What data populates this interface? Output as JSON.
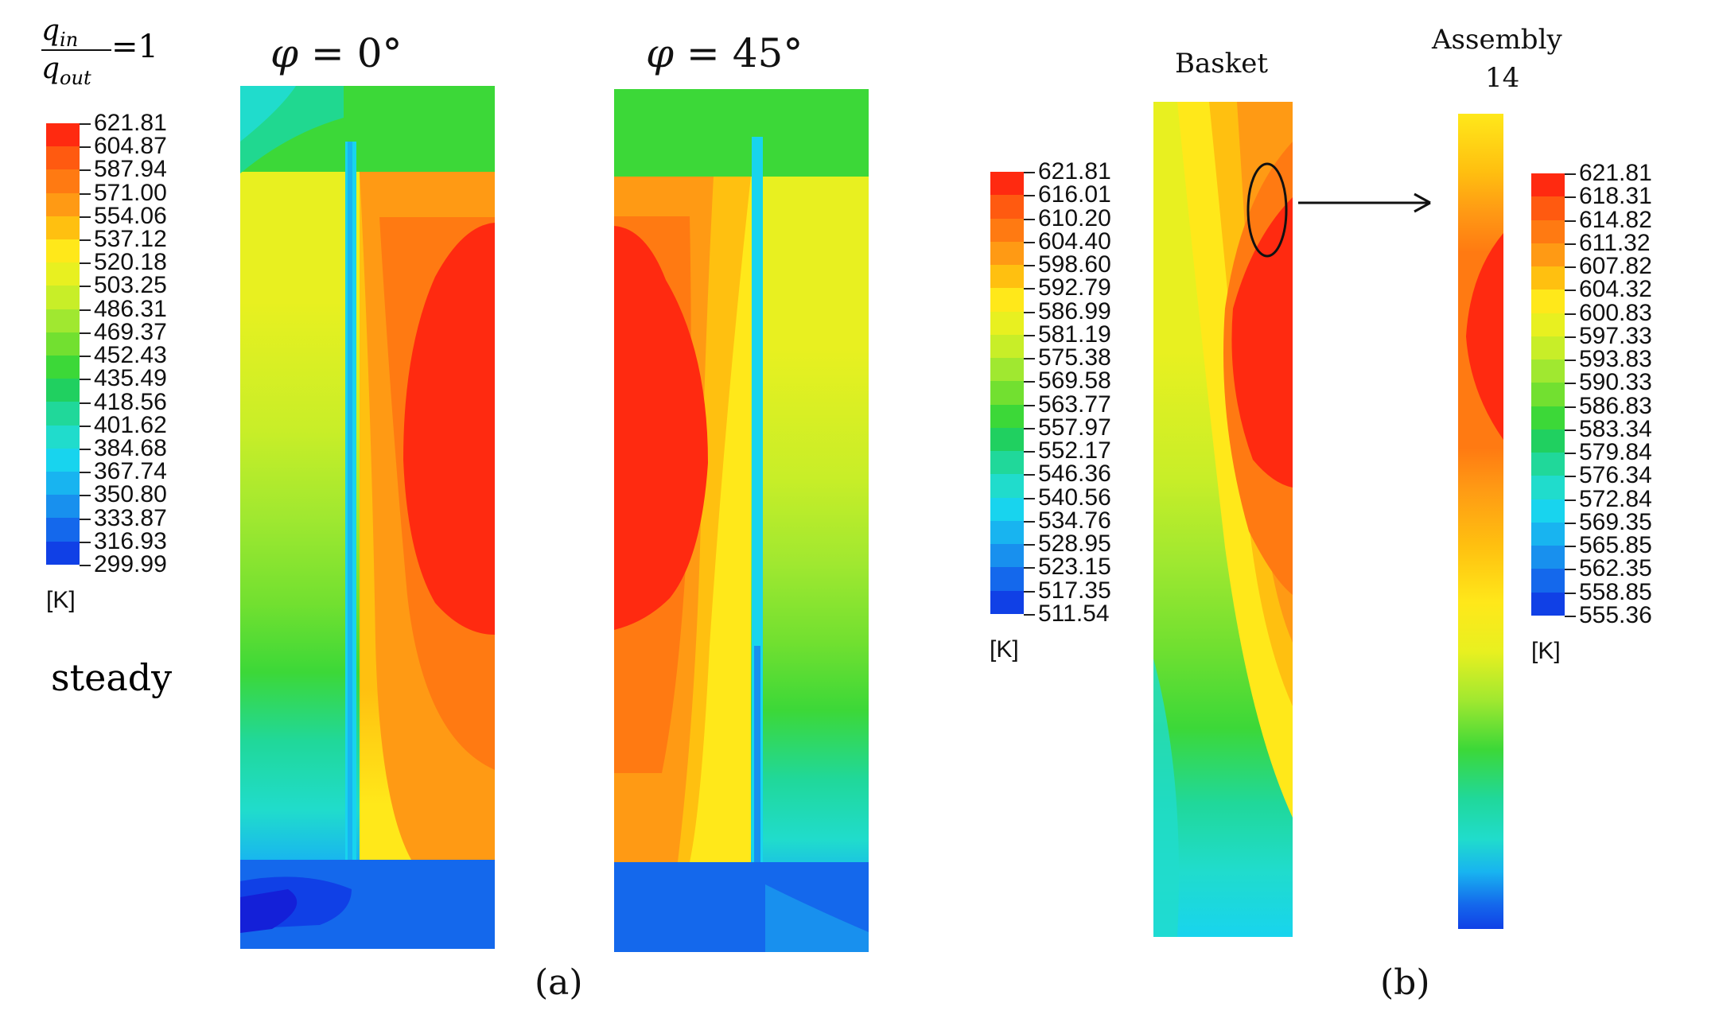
{
  "ratio_label": {
    "numerator": "q",
    "numerator_sub": "in",
    "denominator": "q",
    "denominator_sub": "out",
    "value": "=1"
  },
  "mode_label": "steady",
  "panel_a": {
    "caption": "(a)",
    "angle_left": {
      "symbol": "φ",
      "rest": " = 0°"
    },
    "angle_right": {
      "symbol": "φ",
      "rest": " = 45°"
    }
  },
  "panel_b": {
    "caption": "(b)",
    "basket_title": "Basket",
    "assembly_title_line1": "Assembly",
    "assembly_title_line2": "14"
  },
  "unit": "[K]",
  "legend_a": {
    "values": [
      "621.81",
      "604.87",
      "587.94",
      "571.00",
      "554.06",
      "537.12",
      "520.18",
      "503.25",
      "486.31",
      "469.37",
      "452.43",
      "435.49",
      "418.56",
      "401.62",
      "384.68",
      "367.74",
      "350.80",
      "333.87",
      "316.93",
      "299.99"
    ]
  },
  "legend_b_basket": {
    "values": [
      "621.81",
      "616.01",
      "610.20",
      "604.40",
      "598.60",
      "592.79",
      "586.99",
      "581.19",
      "575.38",
      "569.58",
      "563.77",
      "557.97",
      "552.17",
      "546.36",
      "540.56",
      "534.76",
      "528.95",
      "523.15",
      "517.35",
      "511.54"
    ]
  },
  "legend_b_assembly": {
    "values": [
      "621.81",
      "618.31",
      "614.82",
      "611.32",
      "607.82",
      "604.32",
      "600.83",
      "597.33",
      "593.83",
      "590.33",
      "586.83",
      "583.34",
      "579.84",
      "576.34",
      "572.84",
      "569.35",
      "565.85",
      "562.35",
      "558.85",
      "555.36"
    ]
  },
  "colormap": [
    "#ff2a10",
    "#ff5a10",
    "#ff7a12",
    "#ff9a14",
    "#ffc010",
    "#ffe81a",
    "#e8f020",
    "#c8ee28",
    "#a0e830",
    "#72e030",
    "#3cd838",
    "#20d060",
    "#20d89a",
    "#20dccc",
    "#18d4ee",
    "#18b4f0",
    "#1890ee",
    "#1468ec",
    "#1040e6",
    "#1420d8"
  ]
}
